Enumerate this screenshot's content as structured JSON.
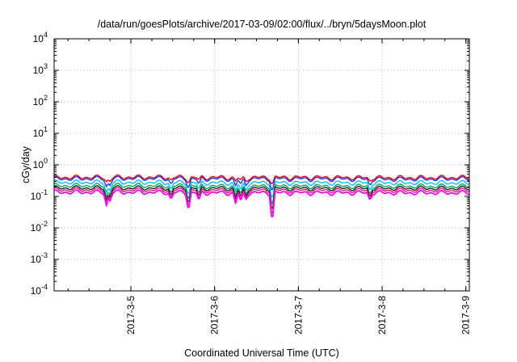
{
  "chart_data": {
    "type": "line",
    "title": "/data/run/goesPlots/archive/2017-03-09/02:00/flux/../bryn/5daysMoon.plot",
    "xlabel": "Coordinated Universal Time (UTC)",
    "ylabel": "cGy/day",
    "yscale": "log",
    "ylim": [
      0.0001,
      10000
    ],
    "xlim": [
      "2017-03-04 02:00",
      "2017-03-09 01:00"
    ],
    "grid": true,
    "xticks": [
      {
        "label": "2017-3-5",
        "t": "2017-03-05 00:00"
      },
      {
        "label": "2017-3-6",
        "t": "2017-03-06 00:00"
      },
      {
        "label": "2017-3-7",
        "t": "2017-03-07 00:00"
      },
      {
        "label": "2017-3-8",
        "t": "2017-03-08 00:00"
      },
      {
        "label": "2017-3-9",
        "t": "2017-03-09 00:00"
      }
    ],
    "yticks": [
      {
        "base": "10",
        "exp": "-4",
        "value": 0.0001
      },
      {
        "base": "10",
        "exp": "-3",
        "value": 0.001
      },
      {
        "base": "10",
        "exp": "-2",
        "value": 0.01
      },
      {
        "base": "10",
        "exp": "-1",
        "value": 0.1
      },
      {
        "base": "10",
        "exp": "0",
        "value": 1
      },
      {
        "base": "10",
        "exp": "1",
        "value": 10
      },
      {
        "base": "10",
        "exp": "2",
        "value": 100
      },
      {
        "base": "10",
        "exp": "3",
        "value": 1000
      },
      {
        "base": "10",
        "exp": "4",
        "value": 10000
      }
    ],
    "x": [
      "2017-03-04 02:00",
      "2017-03-05 02:00",
      "2017-03-06 02:00",
      "2017-03-07 02:00",
      "2017-03-08 02:00",
      "2017-03-09 01:00"
    ],
    "series": [
      {
        "color": "#ff0000",
        "values": [
          0.4,
          0.41,
          0.4,
          0.4,
          0.39,
          0.4
        ]
      },
      {
        "color": "#1a3cff",
        "values": [
          0.36,
          0.37,
          0.36,
          0.36,
          0.35,
          0.36
        ]
      },
      {
        "color": "#00c0ff",
        "values": [
          0.28,
          0.28,
          0.27,
          0.27,
          0.27,
          0.27
        ]
      },
      {
        "color": "#00a85a",
        "values": [
          0.22,
          0.22,
          0.21,
          0.21,
          0.21,
          0.21
        ]
      },
      {
        "color": "#202020",
        "values": [
          0.185,
          0.185,
          0.18,
          0.18,
          0.18,
          0.18
        ]
      },
      {
        "color": "#e8147a",
        "values": [
          0.16,
          0.16,
          0.155,
          0.155,
          0.155,
          0.155
        ]
      },
      {
        "color": "#ff00ff",
        "values": [
          0.135,
          0.135,
          0.13,
          0.13,
          0.13,
          0.13
        ]
      }
    ],
    "dips": [
      {
        "t": "2017-03-04 17:00",
        "min": 0.05
      },
      {
        "t": "2017-03-04 18:00",
        "min": 0.07
      },
      {
        "t": "2017-03-05 11:30",
        "min": 0.08
      },
      {
        "t": "2017-03-05 16:30",
        "min": 0.035
      },
      {
        "t": "2017-03-05 19:30",
        "min": 0.075
      },
      {
        "t": "2017-03-06 06:00",
        "min": 0.06
      },
      {
        "t": "2017-03-06 07:30",
        "min": 0.07
      },
      {
        "t": "2017-03-06 09:00",
        "min": 0.08
      },
      {
        "t": "2017-03-06 16:30",
        "min": 0.015
      },
      {
        "t": "2017-03-07 20:30",
        "min": 0.075
      }
    ]
  }
}
